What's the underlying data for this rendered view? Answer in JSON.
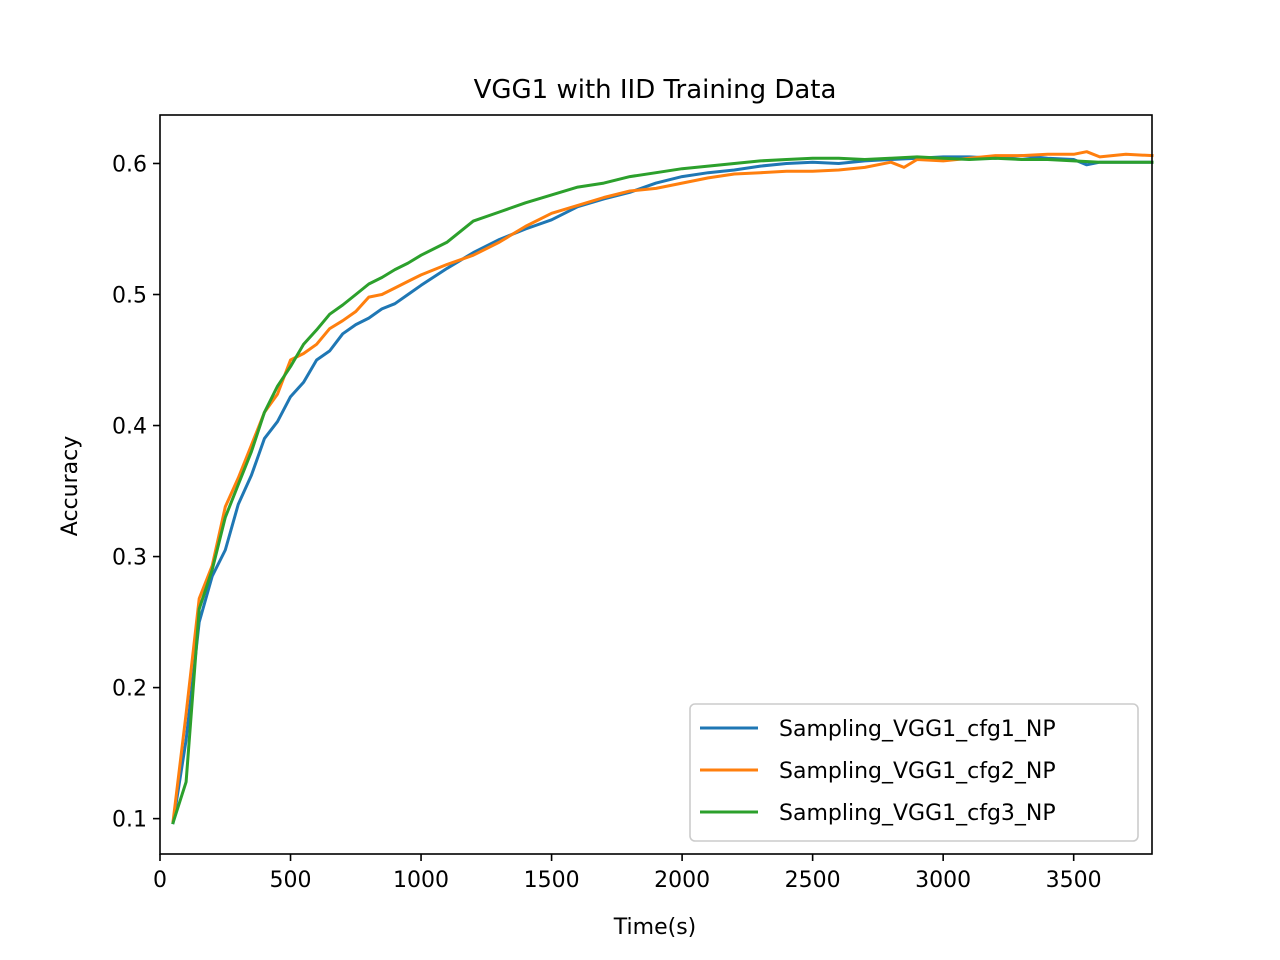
{
  "chart_data": {
    "type": "line",
    "title": "VGG1 with IID Training Data",
    "xlabel": "Time(s)",
    "ylabel": "Accuracy",
    "xlim": [
      0,
      3800
    ],
    "ylim": [
      0.073,
      0.637
    ],
    "xticks": [
      0,
      500,
      1000,
      1500,
      2000,
      2500,
      3000,
      3500
    ],
    "yticks": [
      0.1,
      0.2,
      0.3,
      0.4,
      0.5,
      0.6
    ],
    "xtick_labels": [
      "0",
      "500",
      "1000",
      "1500",
      "2000",
      "2500",
      "3000",
      "3500"
    ],
    "ytick_labels": [
      "0.1",
      "0.2",
      "0.3",
      "0.4",
      "0.5",
      "0.6"
    ],
    "grid": false,
    "legend_position": "bottom-right",
    "series": [
      {
        "name": "Sampling_VGG1_cfg1_NP",
        "color": "#1f77b4",
        "x": [
          50,
          100,
          150,
          200,
          250,
          300,
          350,
          400,
          450,
          500,
          550,
          600,
          650,
          700,
          750,
          800,
          850,
          900,
          950,
          1000,
          1100,
          1200,
          1300,
          1400,
          1500,
          1600,
          1700,
          1800,
          1900,
          2000,
          2100,
          2200,
          2300,
          2400,
          2500,
          2600,
          2700,
          2800,
          2900,
          3000,
          3100,
          3200,
          3300,
          3400,
          3500,
          3550,
          3600,
          3700,
          3800
        ],
        "y": [
          0.097,
          0.16,
          0.25,
          0.285,
          0.305,
          0.34,
          0.362,
          0.39,
          0.403,
          0.422,
          0.433,
          0.45,
          0.457,
          0.47,
          0.477,
          0.482,
          0.489,
          0.493,
          0.5,
          0.507,
          0.52,
          0.532,
          0.542,
          0.55,
          0.557,
          0.567,
          0.573,
          0.578,
          0.585,
          0.59,
          0.593,
          0.595,
          0.598,
          0.6,
          0.601,
          0.6,
          0.602,
          0.603,
          0.604,
          0.605,
          0.605,
          0.604,
          0.606,
          0.604,
          0.603,
          0.599,
          0.601,
          0.601,
          0.601
        ]
      },
      {
        "name": "Sampling_VGG1_cfg2_NP",
        "color": "#ff7f0e",
        "x": [
          50,
          100,
          150,
          200,
          250,
          300,
          350,
          400,
          450,
          500,
          550,
          600,
          650,
          700,
          750,
          800,
          850,
          900,
          950,
          1000,
          1100,
          1200,
          1300,
          1400,
          1500,
          1600,
          1700,
          1800,
          1900,
          2000,
          2100,
          2200,
          2300,
          2400,
          2500,
          2600,
          2700,
          2800,
          2850,
          2900,
          3000,
          3100,
          3200,
          3300,
          3400,
          3500,
          3550,
          3600,
          3700,
          3800
        ],
        "y": [
          0.098,
          0.18,
          0.268,
          0.293,
          0.338,
          0.36,
          0.385,
          0.41,
          0.424,
          0.45,
          0.455,
          0.462,
          0.474,
          0.48,
          0.487,
          0.498,
          0.5,
          0.505,
          0.51,
          0.515,
          0.523,
          0.53,
          0.54,
          0.552,
          0.562,
          0.568,
          0.574,
          0.579,
          0.581,
          0.585,
          0.589,
          0.592,
          0.593,
          0.594,
          0.594,
          0.595,
          0.597,
          0.601,
          0.597,
          0.603,
          0.602,
          0.604,
          0.606,
          0.606,
          0.607,
          0.607,
          0.609,
          0.605,
          0.607,
          0.606
        ]
      },
      {
        "name": "Sampling_VGG1_cfg3_NP",
        "color": "#2ca02c",
        "x": [
          50,
          100,
          150,
          200,
          250,
          300,
          350,
          400,
          450,
          500,
          550,
          600,
          650,
          700,
          750,
          800,
          850,
          900,
          950,
          1000,
          1100,
          1200,
          1300,
          1400,
          1500,
          1600,
          1700,
          1800,
          1900,
          2000,
          2100,
          2200,
          2300,
          2400,
          2500,
          2600,
          2700,
          2800,
          2900,
          3000,
          3100,
          3200,
          3300,
          3400,
          3500,
          3600,
          3700,
          3800
        ],
        "y": [
          0.097,
          0.128,
          0.26,
          0.29,
          0.33,
          0.355,
          0.38,
          0.41,
          0.43,
          0.445,
          0.462,
          0.473,
          0.485,
          0.492,
          0.5,
          0.508,
          0.513,
          0.519,
          0.524,
          0.53,
          0.54,
          0.556,
          0.563,
          0.57,
          0.576,
          0.582,
          0.585,
          0.59,
          0.593,
          0.596,
          0.598,
          0.6,
          0.602,
          0.603,
          0.604,
          0.604,
          0.603,
          0.604,
          0.605,
          0.604,
          0.603,
          0.604,
          0.603,
          0.603,
          0.602,
          0.601,
          0.601,
          0.601
        ]
      }
    ]
  }
}
